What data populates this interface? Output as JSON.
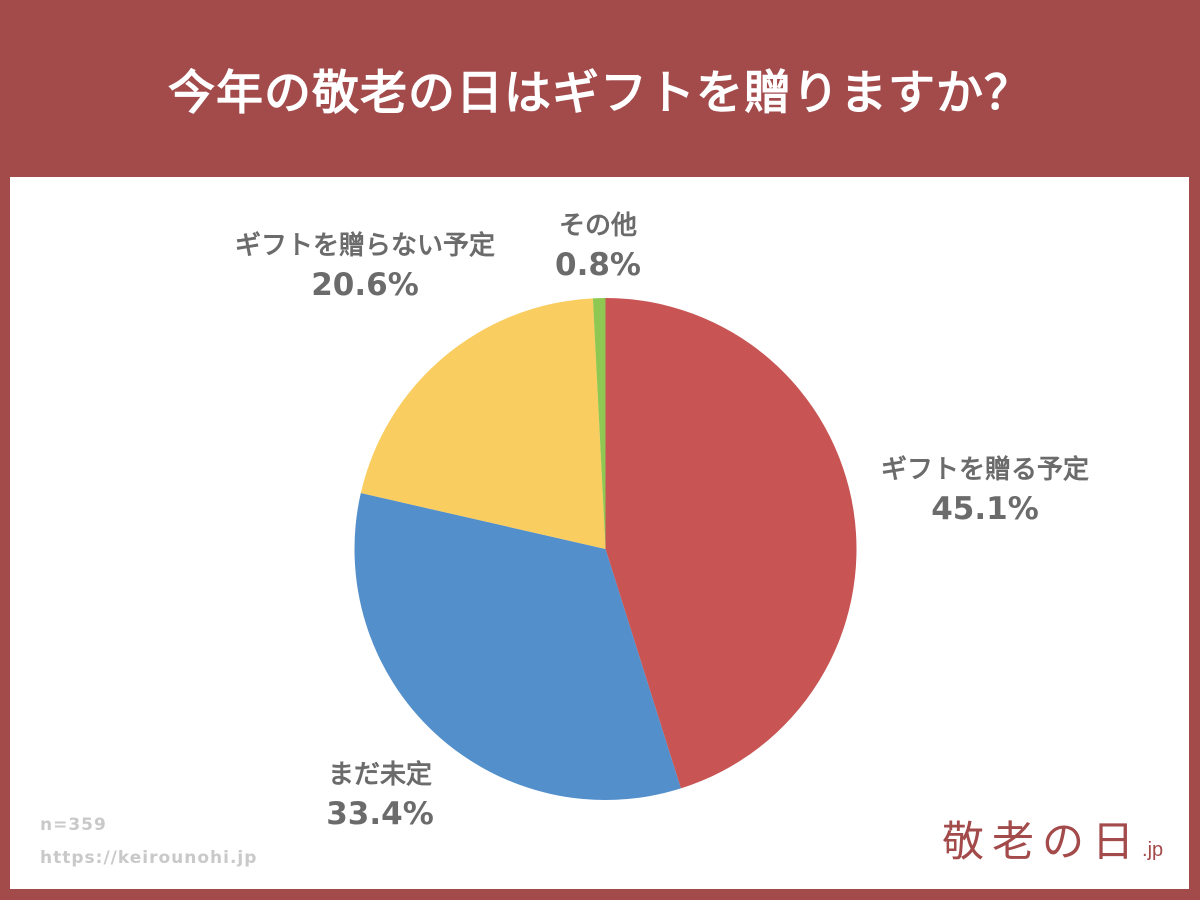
{
  "header": {
    "title": "今年の敬老の日はギフトを贈りますか？"
  },
  "colors": {
    "background": "#a34a4b",
    "panel": "#ffffff",
    "label": "#6b6b6b",
    "note": "#c9c9c9"
  },
  "footer": {
    "sample_size": "n=359",
    "url": "https://keirounohi.jp",
    "logo_text": "敬老の日",
    "logo_tld": ".jp"
  },
  "chart_data": {
    "type": "pie",
    "title": "今年の敬老の日はギフトを贈りますか？",
    "start_angle": "12 o'clock, clockwise",
    "categories": [
      "ギフトを贈る予定",
      "まだ未定",
      "ギフトを贈らない予定",
      "その他"
    ],
    "values": [
      45.1,
      33.4,
      20.6,
      0.8
    ],
    "unit": "%",
    "colors": [
      "#c85454",
      "#528fcb",
      "#f9cd5f",
      "#8ec852"
    ],
    "labels": [
      {
        "name": "ギフトを贈る予定",
        "pct": "45.1%"
      },
      {
        "name": "まだ未定",
        "pct": "33.4%"
      },
      {
        "name": "ギフトを贈らない予定",
        "pct": "20.6%"
      },
      {
        "name": "その他",
        "pct": "0.8%"
      }
    ],
    "sample_size": 359,
    "legend": "none (direct labels)"
  }
}
